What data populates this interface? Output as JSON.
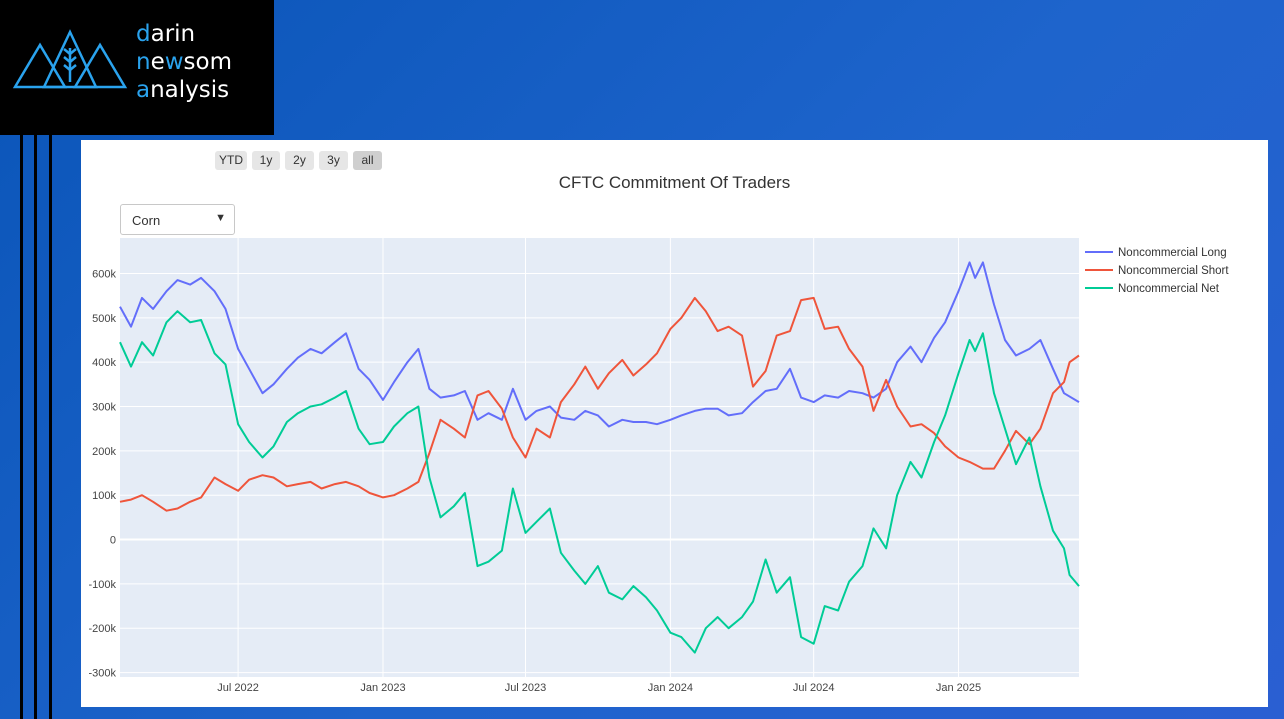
{
  "logo": {
    "lines": [
      {
        "first": "d",
        "rest": "arin"
      },
      {
        "first": "n",
        "mid": "e",
        "w": "w",
        "rest": "som"
      },
      {
        "first": "a",
        "rest": "nalysis"
      }
    ],
    "icon": "mountain-wheat-icon",
    "accent_color": "#2aa3ee"
  },
  "range_selector": {
    "buttons": [
      "YTD",
      "1y",
      "2y",
      "3y",
      "all"
    ],
    "active": "all"
  },
  "dropdown": {
    "selected": "Corn",
    "icon": "triangle-down-icon"
  },
  "chart_data": {
    "type": "line",
    "title": "CFTC Commitment Of Traders",
    "x_range": [
      "2022-02-01",
      "2025-06-03"
    ],
    "y_range": [
      -310000,
      680000
    ],
    "x_ticks": [
      {
        "date": "2022-07-01",
        "label": "Jul 2022"
      },
      {
        "date": "2023-01-01",
        "label": "Jan 2023"
      },
      {
        "date": "2023-07-01",
        "label": "Jul 2023"
      },
      {
        "date": "2024-01-01",
        "label": "Jan 2024"
      },
      {
        "date": "2024-07-01",
        "label": "Jul 2024"
      },
      {
        "date": "2025-01-01",
        "label": "Jan 2025"
      }
    ],
    "y_ticks": [
      {
        "value": 600000,
        "label": "600k"
      },
      {
        "value": 500000,
        "label": "500k"
      },
      {
        "value": 400000,
        "label": "400k"
      },
      {
        "value": 300000,
        "label": "300k"
      },
      {
        "value": 200000,
        "label": "200k"
      },
      {
        "value": 100000,
        "label": "100k"
      },
      {
        "value": 0,
        "label": "0"
      },
      {
        "value": -100000,
        "label": "-100k"
      },
      {
        "value": -200000,
        "label": "-200k"
      },
      {
        "value": -300000,
        "label": "-300k"
      }
    ],
    "grid": true,
    "legend_position": "right",
    "series": [
      {
        "name": "Noncommercial Long",
        "color": "#636efa",
        "points": [
          [
            "2022-02-01",
            525000
          ],
          [
            "2022-02-15",
            480000
          ],
          [
            "2022-03-01",
            545000
          ],
          [
            "2022-03-15",
            520000
          ],
          [
            "2022-04-01",
            560000
          ],
          [
            "2022-04-15",
            585000
          ],
          [
            "2022-05-01",
            575000
          ],
          [
            "2022-05-15",
            590000
          ],
          [
            "2022-06-01",
            560000
          ],
          [
            "2022-06-15",
            520000
          ],
          [
            "2022-07-01",
            430000
          ],
          [
            "2022-07-15",
            385000
          ],
          [
            "2022-08-01",
            330000
          ],
          [
            "2022-08-15",
            350000
          ],
          [
            "2022-09-01",
            385000
          ],
          [
            "2022-09-15",
            410000
          ],
          [
            "2022-10-01",
            430000
          ],
          [
            "2022-10-15",
            420000
          ],
          [
            "2022-11-01",
            445000
          ],
          [
            "2022-11-15",
            465000
          ],
          [
            "2022-12-01",
            385000
          ],
          [
            "2022-12-15",
            360000
          ],
          [
            "2023-01-01",
            315000
          ],
          [
            "2023-01-15",
            355000
          ],
          [
            "2023-02-01",
            400000
          ],
          [
            "2023-02-15",
            430000
          ],
          [
            "2023-03-01",
            340000
          ],
          [
            "2023-03-15",
            320000
          ],
          [
            "2023-04-01",
            325000
          ],
          [
            "2023-04-15",
            335000
          ],
          [
            "2023-05-01",
            270000
          ],
          [
            "2023-05-15",
            285000
          ],
          [
            "2023-06-01",
            270000
          ],
          [
            "2023-06-15",
            340000
          ],
          [
            "2023-07-01",
            270000
          ],
          [
            "2023-07-15",
            290000
          ],
          [
            "2023-08-01",
            300000
          ],
          [
            "2023-08-15",
            275000
          ],
          [
            "2023-09-01",
            270000
          ],
          [
            "2023-09-15",
            290000
          ],
          [
            "2023-10-01",
            280000
          ],
          [
            "2023-10-15",
            255000
          ],
          [
            "2023-11-01",
            270000
          ],
          [
            "2023-11-15",
            265000
          ],
          [
            "2023-12-01",
            265000
          ],
          [
            "2023-12-15",
            260000
          ],
          [
            "2024-01-01",
            270000
          ],
          [
            "2024-01-15",
            280000
          ],
          [
            "2024-02-01",
            290000
          ],
          [
            "2024-02-15",
            295000
          ],
          [
            "2024-03-01",
            295000
          ],
          [
            "2024-03-15",
            280000
          ],
          [
            "2024-04-01",
            285000
          ],
          [
            "2024-04-15",
            310000
          ],
          [
            "2024-05-01",
            335000
          ],
          [
            "2024-05-15",
            340000
          ],
          [
            "2024-06-01",
            385000
          ],
          [
            "2024-06-15",
            320000
          ],
          [
            "2024-07-01",
            310000
          ],
          [
            "2024-07-15",
            325000
          ],
          [
            "2024-08-01",
            320000
          ],
          [
            "2024-08-15",
            335000
          ],
          [
            "2024-09-01",
            330000
          ],
          [
            "2024-09-15",
            320000
          ],
          [
            "2024-10-01",
            340000
          ],
          [
            "2024-10-15",
            400000
          ],
          [
            "2024-11-01",
            435000
          ],
          [
            "2024-11-15",
            400000
          ],
          [
            "2024-12-01",
            455000
          ],
          [
            "2024-12-15",
            490000
          ],
          [
            "2025-01-01",
            560000
          ],
          [
            "2025-01-15",
            625000
          ],
          [
            "2025-01-22",
            590000
          ],
          [
            "2025-02-01",
            625000
          ],
          [
            "2025-02-15",
            530000
          ],
          [
            "2025-03-01",
            450000
          ],
          [
            "2025-03-15",
            415000
          ],
          [
            "2025-04-01",
            430000
          ],
          [
            "2025-04-15",
            450000
          ],
          [
            "2025-05-01",
            385000
          ],
          [
            "2025-05-15",
            330000
          ],
          [
            "2025-06-03",
            310000
          ]
        ]
      },
      {
        "name": "Noncommercial Short",
        "color": "#ef553b",
        "points": [
          [
            "2022-02-01",
            85000
          ],
          [
            "2022-02-15",
            90000
          ],
          [
            "2022-03-01",
            100000
          ],
          [
            "2022-03-15",
            85000
          ],
          [
            "2022-04-01",
            65000
          ],
          [
            "2022-04-15",
            70000
          ],
          [
            "2022-05-01",
            85000
          ],
          [
            "2022-05-15",
            95000
          ],
          [
            "2022-06-01",
            140000
          ],
          [
            "2022-06-15",
            125000
          ],
          [
            "2022-07-01",
            110000
          ],
          [
            "2022-07-15",
            135000
          ],
          [
            "2022-08-01",
            145000
          ],
          [
            "2022-08-15",
            140000
          ],
          [
            "2022-09-01",
            120000
          ],
          [
            "2022-09-15",
            125000
          ],
          [
            "2022-10-01",
            130000
          ],
          [
            "2022-10-15",
            115000
          ],
          [
            "2022-11-01",
            125000
          ],
          [
            "2022-11-15",
            130000
          ],
          [
            "2022-12-01",
            120000
          ],
          [
            "2022-12-15",
            105000
          ],
          [
            "2023-01-01",
            95000
          ],
          [
            "2023-01-15",
            100000
          ],
          [
            "2023-02-01",
            115000
          ],
          [
            "2023-02-15",
            130000
          ],
          [
            "2023-03-01",
            195000
          ],
          [
            "2023-03-15",
            270000
          ],
          [
            "2023-04-01",
            250000
          ],
          [
            "2023-04-15",
            230000
          ],
          [
            "2023-05-01",
            325000
          ],
          [
            "2023-05-15",
            335000
          ],
          [
            "2023-06-01",
            295000
          ],
          [
            "2023-06-15",
            230000
          ],
          [
            "2023-07-01",
            185000
          ],
          [
            "2023-07-15",
            250000
          ],
          [
            "2023-08-01",
            230000
          ],
          [
            "2023-08-15",
            310000
          ],
          [
            "2023-09-01",
            350000
          ],
          [
            "2023-09-15",
            390000
          ],
          [
            "2023-10-01",
            340000
          ],
          [
            "2023-10-15",
            375000
          ],
          [
            "2023-11-01",
            405000
          ],
          [
            "2023-11-15",
            370000
          ],
          [
            "2023-12-01",
            395000
          ],
          [
            "2023-12-15",
            420000
          ],
          [
            "2024-01-01",
            475000
          ],
          [
            "2024-01-15",
            500000
          ],
          [
            "2024-02-01",
            545000
          ],
          [
            "2024-02-15",
            515000
          ],
          [
            "2024-03-01",
            470000
          ],
          [
            "2024-03-15",
            480000
          ],
          [
            "2024-04-01",
            460000
          ],
          [
            "2024-04-15",
            345000
          ],
          [
            "2024-05-01",
            380000
          ],
          [
            "2024-05-15",
            460000
          ],
          [
            "2024-06-01",
            470000
          ],
          [
            "2024-06-15",
            540000
          ],
          [
            "2024-07-01",
            545000
          ],
          [
            "2024-07-15",
            475000
          ],
          [
            "2024-08-01",
            480000
          ],
          [
            "2024-08-15",
            430000
          ],
          [
            "2024-09-01",
            390000
          ],
          [
            "2024-09-15",
            290000
          ],
          [
            "2024-10-01",
            360000
          ],
          [
            "2024-10-15",
            300000
          ],
          [
            "2024-11-01",
            255000
          ],
          [
            "2024-11-15",
            260000
          ],
          [
            "2024-12-01",
            240000
          ],
          [
            "2024-12-15",
            210000
          ],
          [
            "2025-01-01",
            185000
          ],
          [
            "2025-01-15",
            175000
          ],
          [
            "2025-02-01",
            160000
          ],
          [
            "2025-02-15",
            160000
          ],
          [
            "2025-03-01",
            200000
          ],
          [
            "2025-03-15",
            245000
          ],
          [
            "2025-04-01",
            215000
          ],
          [
            "2025-04-15",
            250000
          ],
          [
            "2025-05-01",
            330000
          ],
          [
            "2025-05-15",
            355000
          ],
          [
            "2025-05-22",
            400000
          ],
          [
            "2025-06-03",
            415000
          ]
        ]
      },
      {
        "name": "Noncommercial Net",
        "color": "#00cc96",
        "points": [
          [
            "2022-02-01",
            445000
          ],
          [
            "2022-02-15",
            390000
          ],
          [
            "2022-03-01",
            445000
          ],
          [
            "2022-03-15",
            415000
          ],
          [
            "2022-04-01",
            490000
          ],
          [
            "2022-04-15",
            515000
          ],
          [
            "2022-05-01",
            490000
          ],
          [
            "2022-05-15",
            495000
          ],
          [
            "2022-06-01",
            420000
          ],
          [
            "2022-06-15",
            395000
          ],
          [
            "2022-07-01",
            260000
          ],
          [
            "2022-07-15",
            220000
          ],
          [
            "2022-08-01",
            185000
          ],
          [
            "2022-08-15",
            210000
          ],
          [
            "2022-09-01",
            265000
          ],
          [
            "2022-09-15",
            285000
          ],
          [
            "2022-10-01",
            300000
          ],
          [
            "2022-10-15",
            305000
          ],
          [
            "2022-11-01",
            320000
          ],
          [
            "2022-11-15",
            335000
          ],
          [
            "2022-12-01",
            250000
          ],
          [
            "2022-12-15",
            215000
          ],
          [
            "2023-01-01",
            220000
          ],
          [
            "2023-01-15",
            255000
          ],
          [
            "2023-02-01",
            285000
          ],
          [
            "2023-02-15",
            300000
          ],
          [
            "2023-03-01",
            140000
          ],
          [
            "2023-03-15",
            50000
          ],
          [
            "2023-04-01",
            75000
          ],
          [
            "2023-04-15",
            105000
          ],
          [
            "2023-05-01",
            -60000
          ],
          [
            "2023-05-15",
            -50000
          ],
          [
            "2023-06-01",
            -25000
          ],
          [
            "2023-06-15",
            115000
          ],
          [
            "2023-07-01",
            15000
          ],
          [
            "2023-07-15",
            40000
          ],
          [
            "2023-08-01",
            70000
          ],
          [
            "2023-08-15",
            -30000
          ],
          [
            "2023-09-01",
            -70000
          ],
          [
            "2023-09-15",
            -100000
          ],
          [
            "2023-10-01",
            -60000
          ],
          [
            "2023-10-15",
            -120000
          ],
          [
            "2023-11-01",
            -135000
          ],
          [
            "2023-11-15",
            -105000
          ],
          [
            "2023-12-01",
            -130000
          ],
          [
            "2023-12-15",
            -160000
          ],
          [
            "2024-01-01",
            -210000
          ],
          [
            "2024-01-15",
            -220000
          ],
          [
            "2024-02-01",
            -255000
          ],
          [
            "2024-02-15",
            -200000
          ],
          [
            "2024-03-01",
            -175000
          ],
          [
            "2024-03-15",
            -200000
          ],
          [
            "2024-04-01",
            -175000
          ],
          [
            "2024-04-15",
            -140000
          ],
          [
            "2024-05-01",
            -45000
          ],
          [
            "2024-05-15",
            -120000
          ],
          [
            "2024-06-01",
            -85000
          ],
          [
            "2024-06-15",
            -220000
          ],
          [
            "2024-07-01",
            -235000
          ],
          [
            "2024-07-15",
            -150000
          ],
          [
            "2024-08-01",
            -160000
          ],
          [
            "2024-08-15",
            -95000
          ],
          [
            "2024-09-01",
            -60000
          ],
          [
            "2024-09-15",
            25000
          ],
          [
            "2024-10-01",
            -20000
          ],
          [
            "2024-10-15",
            100000
          ],
          [
            "2024-11-01",
            175000
          ],
          [
            "2024-11-15",
            140000
          ],
          [
            "2024-12-01",
            220000
          ],
          [
            "2024-12-15",
            280000
          ],
          [
            "2025-01-01",
            375000
          ],
          [
            "2025-01-15",
            450000
          ],
          [
            "2025-01-22",
            425000
          ],
          [
            "2025-02-01",
            465000
          ],
          [
            "2025-02-15",
            330000
          ],
          [
            "2025-03-01",
            250000
          ],
          [
            "2025-03-15",
            170000
          ],
          [
            "2025-04-01",
            230000
          ],
          [
            "2025-04-15",
            120000
          ],
          [
            "2025-05-01",
            20000
          ],
          [
            "2025-05-15",
            -20000
          ],
          [
            "2025-05-22",
            -80000
          ],
          [
            "2025-06-03",
            -105000
          ]
        ]
      }
    ]
  }
}
